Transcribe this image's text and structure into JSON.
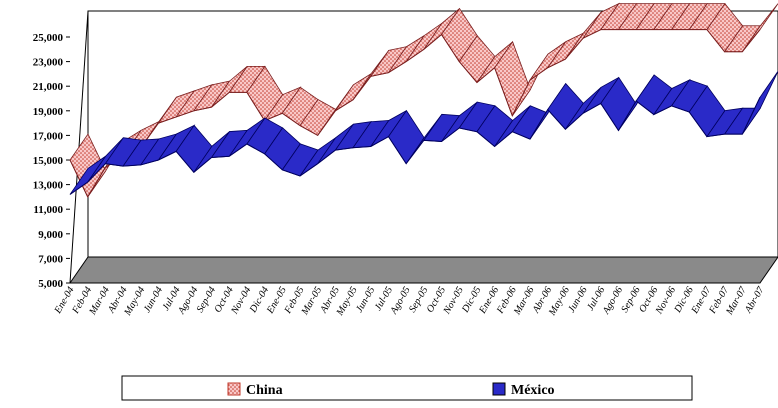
{
  "chart_data": {
    "type": "area",
    "ylim": [
      5000,
      25000
    ],
    "yticks": [
      "5,000",
      "7,000",
      "9,000",
      "11,000",
      "13,000",
      "15,000",
      "17,000",
      "19,000",
      "21,000",
      "23,000",
      "25,000"
    ],
    "categories": [
      "Ene-04",
      "Feb-04",
      "Mar-04",
      "Abr-04",
      "May-04",
      "Jun-04",
      "Jul-04",
      "Ago-04",
      "Sep-04",
      "Oct-04",
      "Nov-04",
      "Dic-04",
      "Ene-05",
      "Feb-05",
      "Mar-05",
      "Abr-05",
      "May-05",
      "Jun-05",
      "Jul-05",
      "Ago-05",
      "Sep-05",
      "Oct-05",
      "Nov-05",
      "Dic-05",
      "Ene-06",
      "Feb-06",
      "Mar-06",
      "Abr-06",
      "May-06",
      "Jun-06",
      "Jul-06",
      "Ago-06",
      "Sep-06",
      "Oct-06",
      "Nov-06",
      "Dic-06",
      "Ene-07",
      "Feb-07",
      "Mar-07",
      "Abr-07"
    ],
    "series": [
      {
        "name": "China",
        "color": "#f4a6a6",
        "values": [
          15000,
          12000,
          14400,
          15300,
          16000,
          18000,
          18500,
          19000,
          19300,
          20500,
          20500,
          18200,
          18800,
          17800,
          17000,
          19000,
          19900,
          21800,
          22100,
          23000,
          24000,
          25200,
          23000,
          21300,
          22500,
          18600,
          21500,
          22500,
          23200,
          24900,
          25600,
          25600,
          25600,
          25600,
          25600,
          25600,
          25600,
          23800,
          23800,
          25600
        ]
      },
      {
        "name": "México",
        "color": "#2a2ac8",
        "values": [
          12200,
          13200,
          14700,
          14500,
          14600,
          15000,
          15700,
          14000,
          15200,
          15300,
          16300,
          15500,
          14200,
          13700,
          14700,
          15800,
          16000,
          16100,
          16900,
          14700,
          16600,
          16500,
          17600,
          17300,
          16100,
          17300,
          16700,
          19100,
          17500,
          18800,
          19600,
          17400,
          19800,
          18700,
          19400,
          18900,
          16900,
          17100,
          17100,
          20100
        ]
      }
    ],
    "legend_position": "bottom",
    "grid": false
  }
}
